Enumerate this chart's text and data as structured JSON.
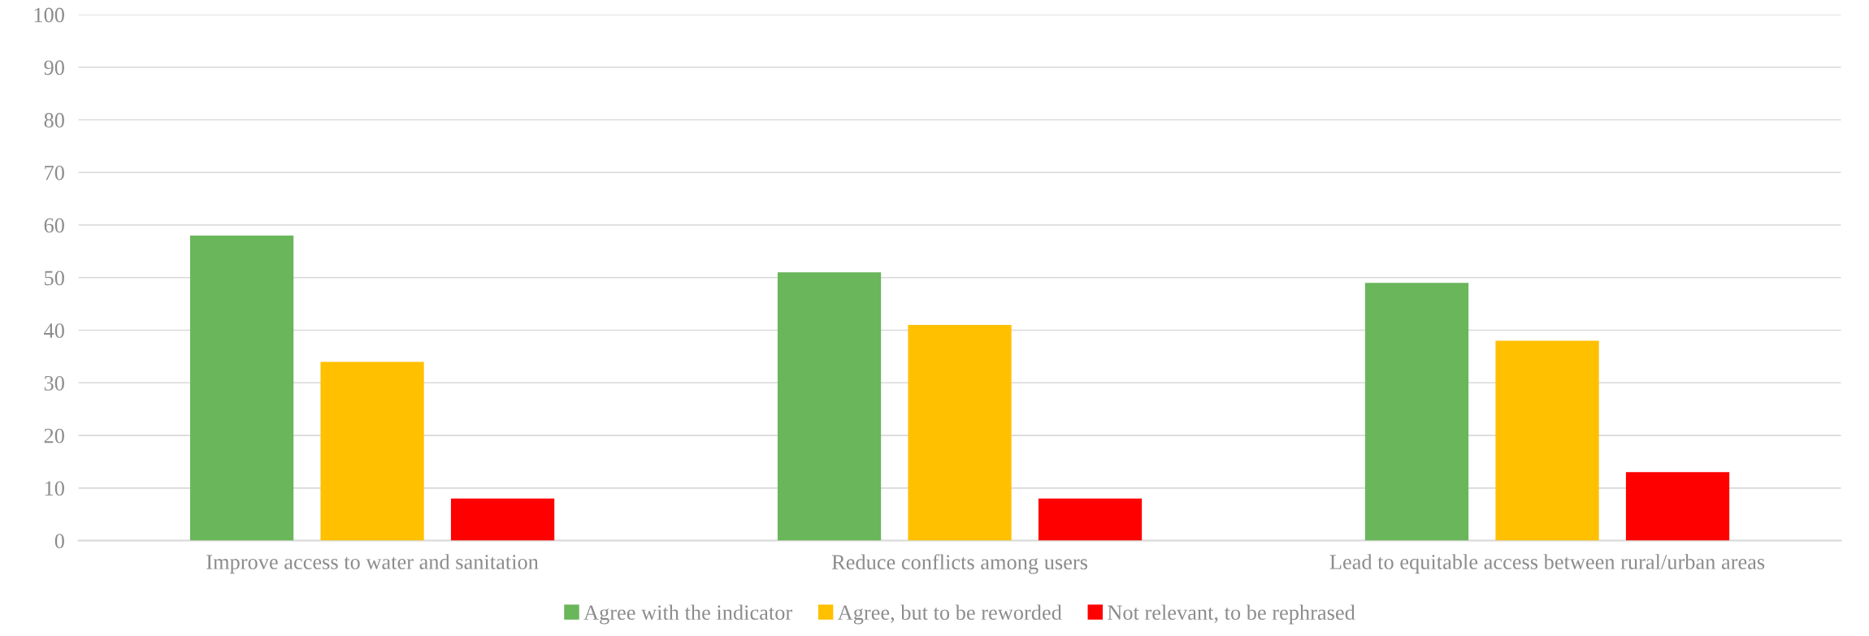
{
  "chart_data": {
    "type": "bar",
    "categories": [
      "Improve access to water and sanitation",
      "Reduce conflicts among users",
      "Lead to equitable access between rural/urban areas"
    ],
    "series": [
      {
        "name": "Agree with the indicator",
        "color": "#6ab65a",
        "values": [
          58,
          51,
          49
        ]
      },
      {
        "name": "Agree, but to be reworded",
        "color": "#ffc000",
        "values": [
          34,
          41,
          38
        ]
      },
      {
        "name": "Not relevant, to be rephrased",
        "color": "#ff0000",
        "values": [
          8,
          8,
          13
        ]
      }
    ],
    "ylim": [
      0,
      100
    ],
    "yticks": [
      0,
      10,
      20,
      30,
      40,
      50,
      60,
      70,
      80,
      90,
      100
    ],
    "grid": "y",
    "legend": "bottom"
  }
}
